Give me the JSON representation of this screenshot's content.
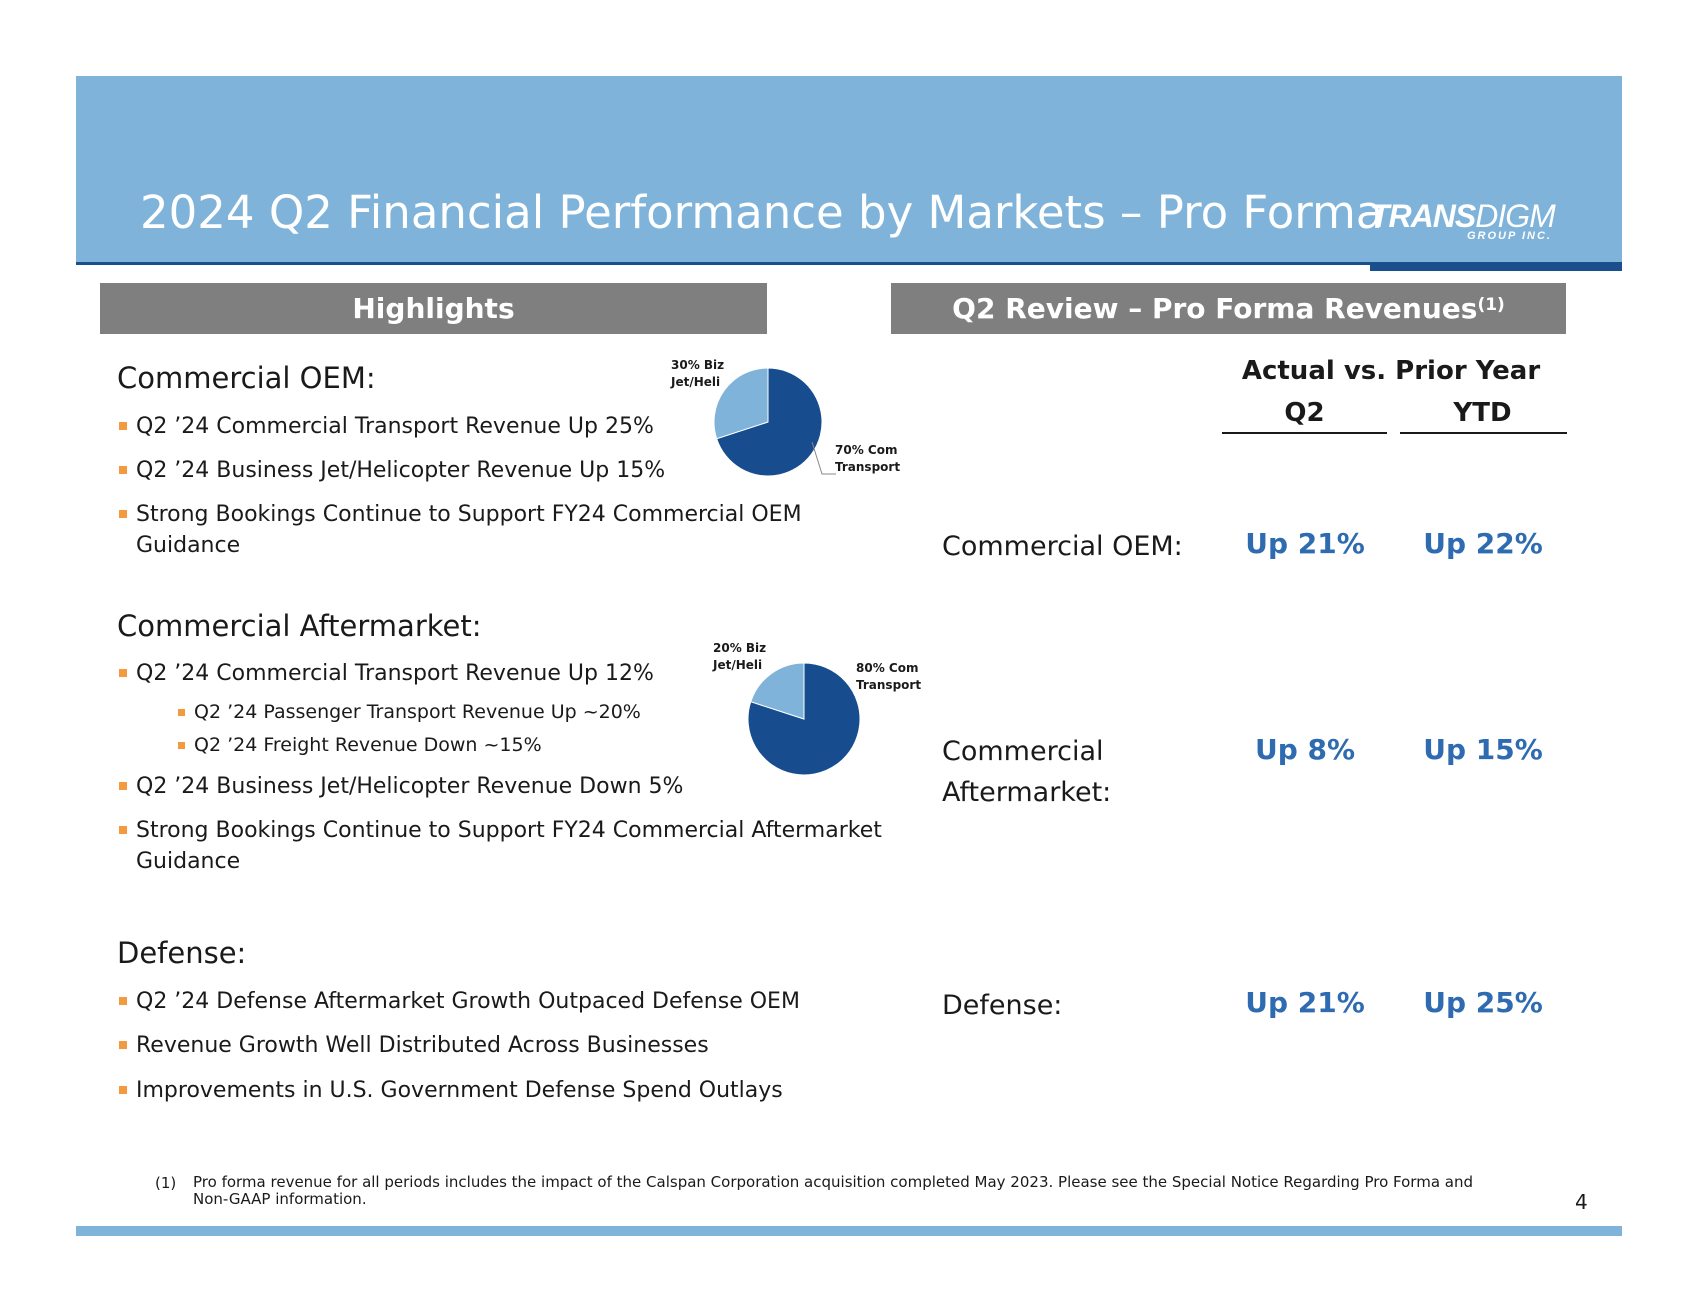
{
  "title": "2024 Q2 Financial Performance by Markets – Pro Forma",
  "logo": {
    "brand_bold": "TRANS",
    "brand_light": "DIGM",
    "sub": "GROUP INC."
  },
  "highlights": {
    "header": "Highlights",
    "commercial_oem": {
      "heading": "Commercial OEM:",
      "bullets": [
        "Q2 ’24 Commercial Transport Revenue Up 25%",
        "Q2 ’24 Business Jet/Helicopter Revenue Up 15%",
        "Strong Bookings Continue to Support FY24 Commercial OEM",
        "Guidance"
      ],
      "pie": {
        "slices": [
          {
            "label_line1": "30% Biz",
            "label_line2": "Jet/Heli",
            "value": 30,
            "color": "#7fb3d9"
          },
          {
            "label_line1": "70% Com",
            "label_line2": "Transport",
            "value": 70,
            "color": "#174c8f"
          }
        ]
      }
    },
    "commercial_aftermarket": {
      "heading": "Commercial Aftermarket:",
      "bullets": [
        "Q2 ’24 Commercial Transport Revenue Up 12%",
        "Q2 ’24 Passenger Transport Revenue Up ~20%",
        "Q2 ’24 Freight Revenue Down ~15%",
        "Q2 ’24 Business Jet/Helicopter Revenue Down 5%",
        "Strong Bookings Continue to Support FY24 Commercial Aftermarket",
        "Guidance"
      ],
      "pie": {
        "slices": [
          {
            "label_line1": "20% Biz",
            "label_line2": "Jet/Heli",
            "value": 20,
            "color": "#7fb3d9"
          },
          {
            "label_line1": "80% Com",
            "label_line2": "Transport",
            "value": 80,
            "color": "#174c8f"
          }
        ]
      }
    },
    "defense": {
      "heading": "Defense:",
      "bullets": [
        "Q2 ’24 Defense Aftermarket Growth Outpaced Defense OEM",
        "Revenue Growth Well Distributed Across Businesses",
        "Improvements in U.S. Government Defense Spend Outlays"
      ]
    }
  },
  "review": {
    "header": "Q2 Review – Pro Forma Revenues",
    "header_note": "(1)",
    "super_header": "Actual vs. Prior Year",
    "col_q2": "Q2",
    "col_ytd": "YTD",
    "rows": [
      {
        "label": "Commercial OEM:",
        "q2": "Up 21%",
        "ytd": "Up 22%"
      },
      {
        "label_line1": "Commercial",
        "label_line2": "Aftermarket:",
        "q2": "Up 8%",
        "ytd": "Up 15%"
      },
      {
        "label": "Defense:",
        "q2": "Up 21%",
        "ytd": "Up 25%"
      }
    ]
  },
  "footnote": {
    "number": "(1)",
    "text": "Pro forma revenue for all periods includes the impact of the Calspan Corporation acquisition completed May 2023. Please see the Special Notice Regarding Pro Forma and Non-GAAP information."
  },
  "page_number": "4",
  "colors": {
    "banner": "#7fb3d9",
    "navy": "#1a4f8e",
    "header_gray": "#7f7f7f",
    "value_blue": "#2e6bb0",
    "bullet_orange": "#f39a3e"
  }
}
